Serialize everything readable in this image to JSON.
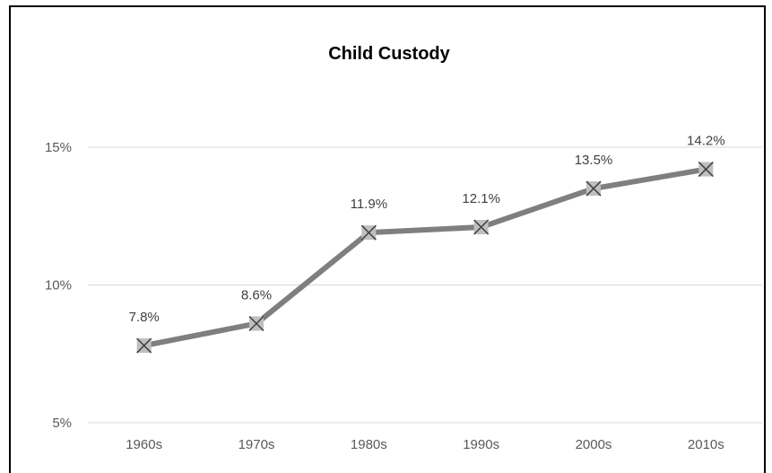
{
  "chart_data": {
    "type": "line",
    "title": "Child Custody",
    "xlabel": "",
    "ylabel": "",
    "categories": [
      "1960s",
      "1970s",
      "1980s",
      "1990s",
      "2000s",
      "2010s"
    ],
    "series": [
      {
        "values": [
          7.8,
          8.6,
          11.9,
          12.1,
          13.5,
          14.2
        ],
        "labels": [
          "7.8%",
          "8.6%",
          "11.9%",
          "12.1%",
          "13.5%",
          "14.2%"
        ],
        "color": "#7f7f7f",
        "marker": "x-in-square"
      }
    ],
    "ylim": [
      5,
      15
    ],
    "yticks": [
      5,
      10,
      15
    ],
    "ytick_labels": [
      "5%",
      "10%",
      "15%"
    ],
    "grid": "horizontal",
    "legend": "none"
  }
}
